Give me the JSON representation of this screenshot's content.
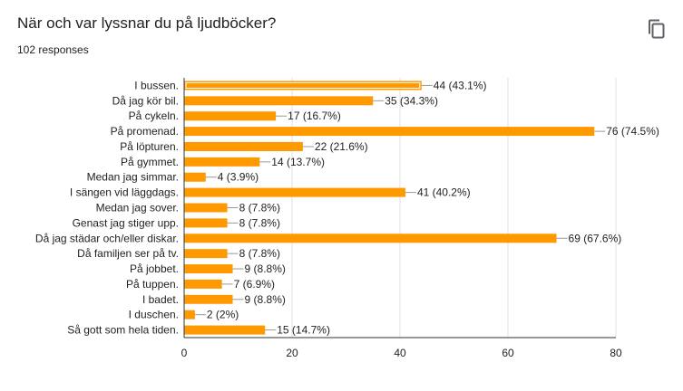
{
  "header": {
    "title": "När och var lyssnar du på ljudböcker?",
    "responses": "102 responses",
    "copy_icon": "copy-icon"
  },
  "colors": {
    "bar": "#ff9900",
    "grid": "#e0e0e0",
    "axis": "#333333",
    "text": "#222222",
    "highlight_stroke": "#ffffff"
  },
  "chart_data": {
    "type": "bar",
    "orientation": "horizontal",
    "categories": [
      "I bussen.",
      "Då jag kör bil.",
      "På cykeln.",
      "På promenad.",
      "På löpturen.",
      "På gymmet.",
      "Medan jag simmar.",
      "I sängen vid läggdags.",
      "Medan jag sover.",
      "Genast jag stiger upp.",
      "Då jag städar och/eller diskar.",
      "Då familjen ser på tv.",
      "På jobbet.",
      "På tuppen.",
      "I badet.",
      "I duschen.",
      "Så gott som hela tiden."
    ],
    "values": [
      44,
      35,
      17,
      76,
      22,
      14,
      4,
      41,
      8,
      8,
      69,
      8,
      9,
      7,
      9,
      2,
      15
    ],
    "labels": [
      "44 (43.1%)",
      "35 (34.3%)",
      "17 (16.7%)",
      "76 (74.5%)",
      "22 (21.6%)",
      "14 (13.7%)",
      "4 (3.9%)",
      "41 (40.2%)",
      "8 (7.8%)",
      "8 (7.8%)",
      "69 (67.6%)",
      "8 (7.8%)",
      "9 (8.8%)",
      "7 (6.9%)",
      "9 (8.8%)",
      "2 (2%)",
      "15 (14.7%)"
    ],
    "xlim": [
      0,
      80
    ],
    "xticks": [
      "0",
      "20",
      "40",
      "60",
      "80"
    ],
    "highlighted_index": 0,
    "grid": true,
    "legend": "none"
  }
}
